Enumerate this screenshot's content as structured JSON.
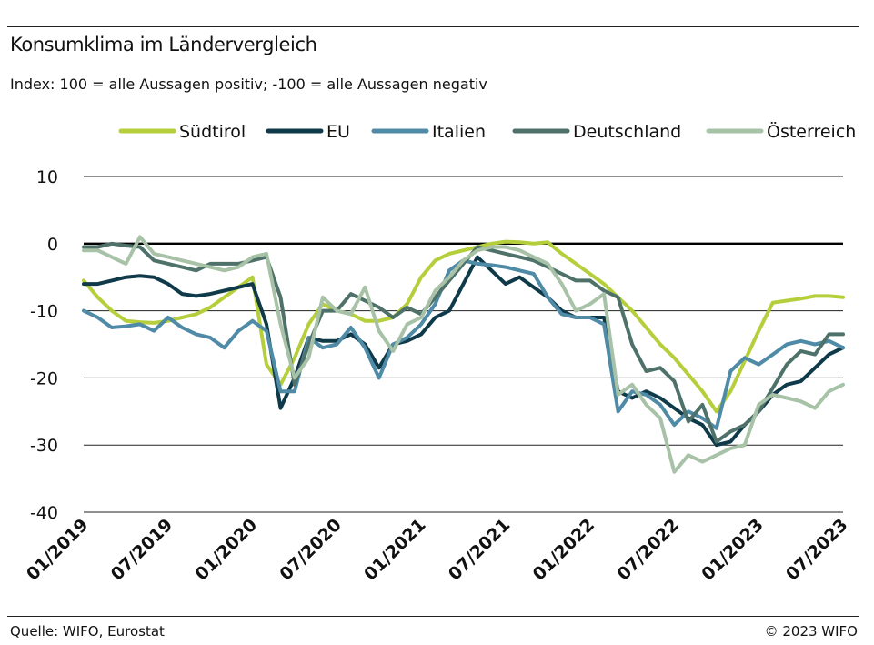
{
  "header": {
    "title": "Konsumklima im Ländervergleich",
    "subtitle": "Index: 100 = alle Aussagen positiv; -100 =  alle Aussagen negativ"
  },
  "footer": {
    "source": "Quelle: WIFO, Eurostat",
    "copyright": "© 2023 WIFO"
  },
  "chart_data": {
    "type": "line",
    "title": "Konsumklima im Ländervergleich",
    "subtitle": "Index: 100 = alle Aussagen positiv; -100 =  alle Aussagen negativ",
    "xlabel": "",
    "ylabel": "",
    "ylim": [
      -40,
      10
    ],
    "yticks": [
      10,
      0,
      -10,
      -20,
      -30,
      -40
    ],
    "ytick_labels": [
      "10",
      "0",
      "-10",
      "-20",
      "-30",
      "-40"
    ],
    "xlim": [
      "2019-01",
      "2023-07"
    ],
    "xticks": [
      "01/2019",
      "07/2019",
      "01/2020",
      "07/2020",
      "01/2021",
      "07/2021",
      "01/2022",
      "07/2022",
      "01/2023",
      "07/2023"
    ],
    "grid": true,
    "legend_position": "top",
    "x": [
      "2019-01",
      "2019-02",
      "2019-03",
      "2019-04",
      "2019-05",
      "2019-06",
      "2019-07",
      "2019-08",
      "2019-09",
      "2019-10",
      "2019-11",
      "2019-12",
      "2020-01",
      "2020-02",
      "2020-03",
      "2020-04",
      "2020-05",
      "2020-06",
      "2020-07",
      "2020-08",
      "2020-09",
      "2020-10",
      "2020-11",
      "2020-12",
      "2021-01",
      "2021-02",
      "2021-03",
      "2021-04",
      "2021-05",
      "2021-06",
      "2021-07",
      "2021-08",
      "2021-09",
      "2021-10",
      "2021-11",
      "2021-12",
      "2022-01",
      "2022-02",
      "2022-03",
      "2022-04",
      "2022-05",
      "2022-06",
      "2022-07",
      "2022-08",
      "2022-09",
      "2022-10",
      "2022-11",
      "2022-12",
      "2023-01",
      "2023-02",
      "2023-03",
      "2023-04",
      "2023-05",
      "2023-06",
      "2023-07"
    ],
    "series": [
      {
        "name": "Südtirol",
        "color": "#b5cf3c",
        "values": [
          -5.5,
          -8,
          -10,
          -11.5,
          -11.7,
          -11.8,
          -11.5,
          -11,
          -10.5,
          -9.5,
          -8,
          -6.5,
          -5,
          -18,
          -21,
          -17,
          -12,
          -9,
          -10,
          -10.5,
          -11.5,
          -11.5,
          -11,
          -9,
          -5,
          -2.5,
          -1.5,
          -1,
          -0.5,
          0,
          0.3,
          0.2,
          0,
          0.2,
          -1.5,
          -3,
          -4.5,
          -6,
          -8,
          -10,
          -12.5,
          -15,
          -17,
          -19.5,
          -22,
          -25,
          -22,
          -17.5,
          -13,
          -8.8,
          -8.5,
          -8.2,
          -7.8,
          -7.8,
          -8
        ]
      },
      {
        "name": "EU",
        "color": "#0f3a4a",
        "values": [
          -6,
          -6,
          -5.5,
          -5,
          -4.8,
          -5,
          -6,
          -7.5,
          -7.8,
          -7.5,
          -7,
          -6.5,
          -6,
          -12,
          -24.5,
          -20,
          -14,
          -14.5,
          -14.5,
          -13.5,
          -15,
          -18.5,
          -15,
          -14.5,
          -13.5,
          -11,
          -10,
          -6,
          -2,
          -4,
          -6,
          -5,
          -6.5,
          -8,
          -10,
          -11,
          -11,
          -11,
          -22,
          -23,
          -22,
          -23,
          -24.5,
          -26,
          -27,
          -30,
          -29.5,
          -27,
          -25,
          -22.5,
          -21,
          -20.5,
          -18.5,
          -16.5,
          -15.5
        ]
      },
      {
        "name": "Italien",
        "color": "#4f8aa6",
        "values": [
          -10,
          -11,
          -12.5,
          -12.3,
          -12,
          -13,
          -11,
          -12.5,
          -13.5,
          -14,
          -15.5,
          -13,
          -11.5,
          -13,
          -22,
          -22,
          -14,
          -15.5,
          -15,
          -12.5,
          -15.5,
          -20,
          -15,
          -14,
          -12,
          -9,
          -4,
          -2.5,
          -3,
          -3.2,
          -3.5,
          -4,
          -4.5,
          -8,
          -10.5,
          -11,
          -11,
          -12,
          -25,
          -22,
          -22.5,
          -24,
          -27,
          -25,
          -26,
          -27.5,
          -19,
          -17,
          -18,
          -16.5,
          -15,
          -14.5,
          -15,
          -14.5,
          -15.5
        ]
      },
      {
        "name": "Deutschland",
        "color": "#4e7169",
        "values": [
          -0.5,
          -0.5,
          0,
          -0.3,
          -0.5,
          -2.5,
          -3,
          -3.5,
          -4,
          -3,
          -3,
          -3,
          -2.5,
          -2,
          -8,
          -21,
          -15,
          -10,
          -10,
          -7.5,
          -8.5,
          -9.5,
          -11,
          -9.5,
          -10.5,
          -8,
          -5.5,
          -3,
          -0.5,
          -1,
          -1.5,
          -2,
          -2.5,
          -3.5,
          -4.5,
          -5.5,
          -5.5,
          -7,
          -8,
          -15,
          -19,
          -18.5,
          -20.5,
          -26.5,
          -24,
          -29.5,
          -28,
          -27,
          -25,
          -21.5,
          -18,
          -16,
          -16.5,
          -13.5,
          -13.5
        ]
      },
      {
        "name": "Österreich",
        "color": "#a8c2a8",
        "values": [
          -1,
          -1,
          -2,
          -3,
          1,
          -1.5,
          -2,
          -2.5,
          -3,
          -3.5,
          -4,
          -3.5,
          -2,
          -1.5,
          -12,
          -20,
          -17,
          -8,
          -10,
          -10.5,
          -6.5,
          -13,
          -16,
          -12,
          -11,
          -7,
          -5,
          -2.5,
          -1,
          -0.5,
          -0.5,
          -1,
          -2,
          -3,
          -6,
          -10,
          -9,
          -7.5,
          -22.5,
          -21,
          -24,
          -26,
          -34,
          -31.5,
          -32.5,
          -31.5,
          -30.5,
          -30,
          -24,
          -22.5,
          -23,
          -23.5,
          -24.5,
          -22,
          -21
        ]
      }
    ]
  }
}
